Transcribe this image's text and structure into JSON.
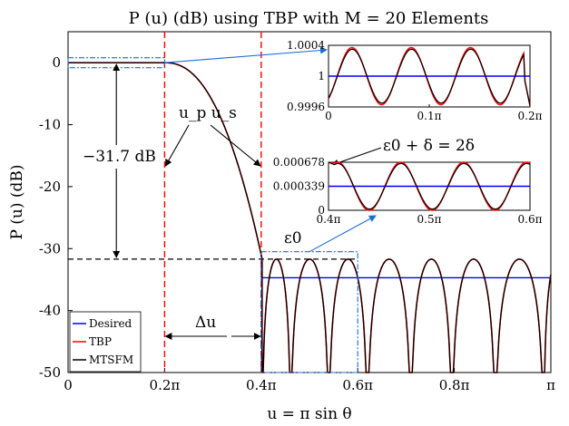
{
  "chart_data": {
    "type": "line",
    "title": "P (u) (dB) using TBP with M = 20 Elements",
    "xlabel": "u = π sin θ",
    "ylabel": "P (u) (dB)",
    "xlim": [
      0,
      1
    ],
    "ylim": [
      -50,
      5
    ],
    "x_unit": "π",
    "xticks": [
      0,
      0.2,
      0.4,
      0.6,
      0.8,
      1.0
    ],
    "xtick_labels": [
      "0",
      "0.2π",
      "0.4π",
      "0.6π",
      "0.8π",
      "π"
    ],
    "yticks": [
      0,
      -10,
      -20,
      -30,
      -40,
      -50
    ],
    "ytick_labels": [
      "0",
      "-10",
      "-20",
      "-30",
      "-40",
      "-50"
    ],
    "grid": false,
    "legend_position": "bottom-left",
    "series": [
      {
        "name": "Desired",
        "color": "#0000ff"
      },
      {
        "name": "TBP",
        "color": "#ff0000"
      },
      {
        "name": "MTSFM",
        "color": "#000000"
      }
    ],
    "passband_edge_up": 0.2,
    "stopband_edge_us": 0.4,
    "sidelobe_level_db": -31.7,
    "desired_stopband_db": -34.7,
    "null_positions": [
      0.402,
      0.461,
      0.54,
      0.62,
      0.71,
      0.795,
      0.885,
      0.985
    ],
    "sidelobe_peaks": [
      0.43,
      0.5,
      0.58,
      0.665,
      0.752,
      0.84,
      0.935
    ],
    "annotations": [
      {
        "text": "−31.7 dB"
      },
      {
        "text": "u_p  u_s"
      },
      {
        "text": "Δu"
      },
      {
        "text": "ε0 + δ = 2δ"
      },
      {
        "text": "ε0"
      }
    ],
    "inset_passband": {
      "xlim": [
        0,
        0.2
      ],
      "ylim": [
        0.9996,
        1.0004
      ],
      "xtick_labels": [
        "0",
        "0.1π",
        "0.2π"
      ],
      "ytick_labels": [
        "1.0004",
        "1",
        "0.9996"
      ],
      "ytick_values": [
        1.0004,
        1,
        0.9996
      ],
      "desired_level": 1
    },
    "inset_stopband": {
      "xlim": [
        0.4,
        0.6
      ],
      "ylim": [
        0,
        0.000678
      ],
      "xtick_labels": [
        "0.4π",
        "0.5π",
        "0.6π"
      ],
      "ytick_labels": [
        "0.000678",
        "0.000339",
        "0"
      ],
      "ytick_values": [
        0.000678,
        0.000339,
        0
      ],
      "desired_level": 0.000339
    }
  }
}
